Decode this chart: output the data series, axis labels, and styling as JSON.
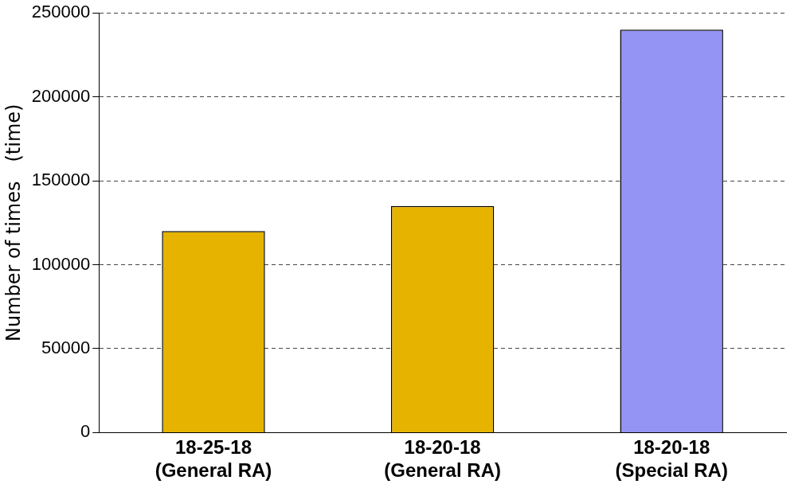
{
  "chart_data": {
    "type": "bar",
    "ylabel": "Number of times　(time)",
    "categories": [
      "18-25-18\n(General RA)",
      "18-20-18\n(General RA)",
      "18-20-18\n(Special RA)"
    ],
    "values": [
      120000,
      135000,
      240000
    ],
    "colors": [
      "#e6b400",
      "#e6b400",
      "#9494f5"
    ],
    "ylim": [
      0,
      250000
    ],
    "yticks": [
      0,
      50000,
      100000,
      150000,
      200000,
      250000
    ],
    "grid": "y",
    "legend": false
  }
}
